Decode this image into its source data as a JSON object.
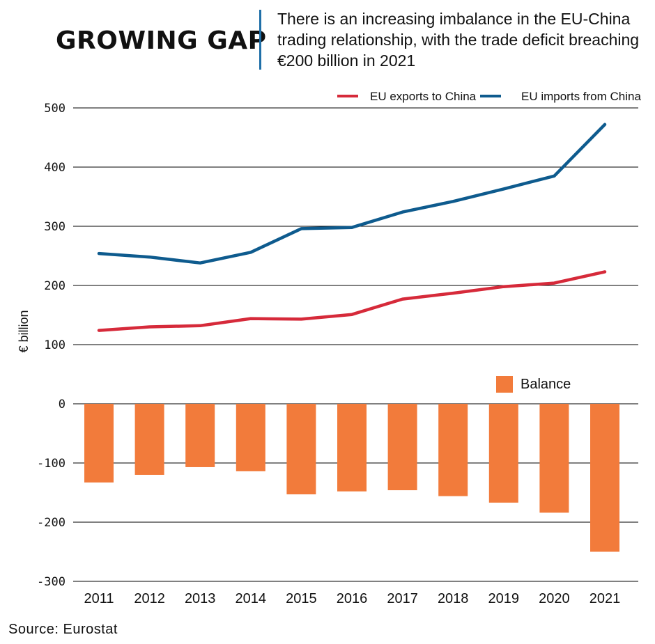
{
  "header": {
    "title": "GROWING GAP",
    "subtitle": "There is an increasing imbalance in the EU-China trading relationship, with the trade deficit breaching €200 billion in 2021"
  },
  "footer": {
    "source": "Source: Eurostat"
  },
  "colors": {
    "exports": "#d62a3a",
    "imports": "#0e5b8e",
    "balance": "#f27b3b",
    "divider": "#1f6fa8"
  },
  "chart_data": {
    "type": "line",
    "ylabel": "€ billion",
    "ylim": [
      -300,
      500
    ],
    "yticks": [
      500,
      400,
      300,
      200,
      100,
      0,
      -100,
      -200,
      -300
    ],
    "categories": [
      "2011",
      "2012",
      "2013",
      "2014",
      "2015",
      "2016",
      "2017",
      "2018",
      "2019",
      "2020",
      "2021"
    ],
    "grid": true,
    "series": [
      {
        "name": "EU exports to China",
        "type": "line",
        "values": [
          124,
          130,
          132,
          144,
          143,
          151,
          177,
          187,
          198,
          204,
          223
        ]
      },
      {
        "name": "EU imports from China",
        "type": "line",
        "values": [
          254,
          248,
          238,
          256,
          296,
          298,
          324,
          342,
          363,
          385,
          472
        ]
      },
      {
        "name": "Balance",
        "type": "bar",
        "values": [
          -133,
          -120,
          -107,
          -114,
          -153,
          -148,
          -146,
          -156,
          -167,
          -184,
          -250
        ]
      }
    ],
    "legend": "top-right"
  }
}
